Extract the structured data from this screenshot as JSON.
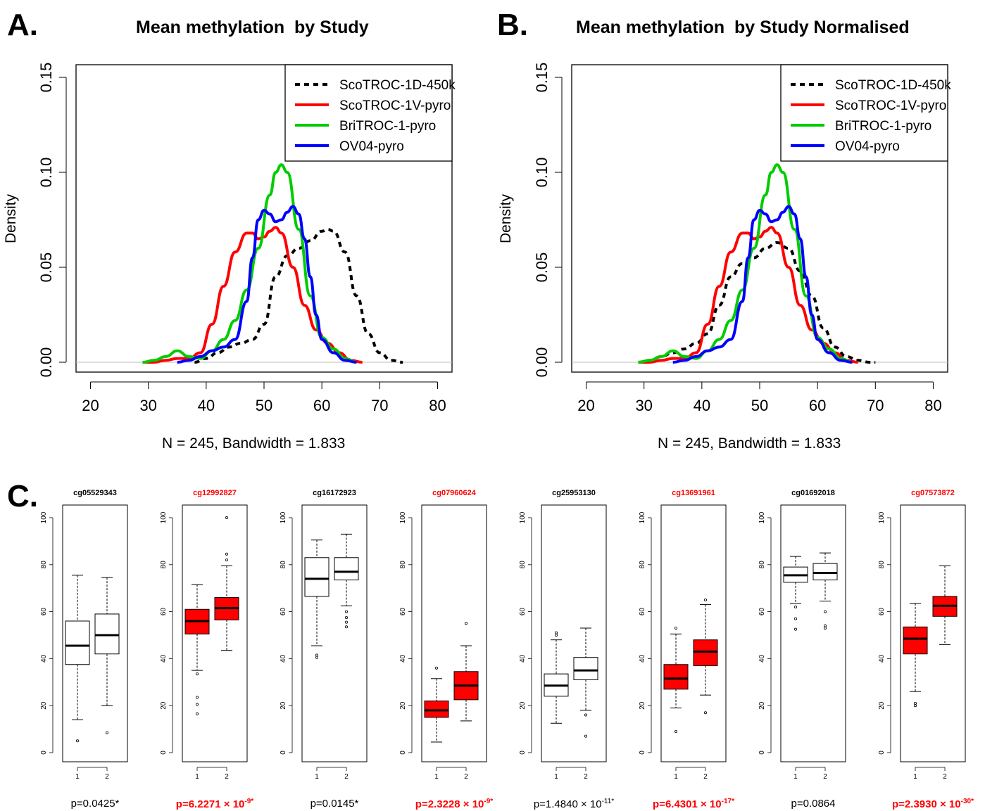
{
  "panels": {
    "a_label": "A.",
    "b_label": "B.",
    "c_label": "C."
  },
  "density_note": "N = 245, Bandwidth = 1.833",
  "chart_data": [
    {
      "type": "line",
      "title": "Mean methylation  by Study",
      "xlabel": "",
      "ylabel": "Density",
      "xlim": [
        17.5,
        82.5
      ],
      "ylim": [
        0,
        0.15
      ],
      "xticks": [
        20,
        30,
        40,
        50,
        60,
        70,
        80
      ],
      "yticks": [
        "0.00",
        "0.05",
        "0.10",
        "0.15"
      ],
      "legend_position": "top-right",
      "series": [
        {
          "name": "ScoTROC-1D-450k",
          "color": "#000000",
          "dashed": true,
          "x": [
            38,
            40,
            42,
            44,
            46,
            48,
            50,
            52,
            54,
            56,
            58,
            60,
            61,
            62,
            64,
            66,
            68,
            70,
            72,
            74
          ],
          "y": [
            0.0,
            0.002,
            0.005,
            0.008,
            0.01,
            0.012,
            0.02,
            0.045,
            0.056,
            0.06,
            0.064,
            0.069,
            0.07,
            0.069,
            0.058,
            0.035,
            0.015,
            0.005,
            0.001,
            0.0
          ]
        },
        {
          "name": "ScoTROC-1V-pyro",
          "color": "#ff0000",
          "dashed": false,
          "x": [
            29,
            31,
            33,
            35,
            37,
            39,
            41,
            43,
            45,
            47,
            48,
            49,
            50,
            51,
            52,
            53,
            55,
            57,
            59,
            61,
            63,
            65,
            67
          ],
          "y": [
            0.0,
            0.0,
            0.001,
            0.002,
            0.002,
            0.005,
            0.02,
            0.04,
            0.058,
            0.068,
            0.068,
            0.065,
            0.066,
            0.069,
            0.071,
            0.068,
            0.05,
            0.03,
            0.017,
            0.01,
            0.005,
            0.001,
            0.0
          ]
        },
        {
          "name": "BriTROC-1-pyro",
          "color": "#00cc00",
          "dashed": false,
          "x": [
            29,
            31,
            33,
            35,
            37,
            39,
            41,
            43,
            45,
            47,
            49,
            51,
            52,
            53,
            54,
            56,
            58,
            60,
            62,
            64,
            66
          ],
          "y": [
            0.0,
            0.001,
            0.003,
            0.006,
            0.003,
            0.002,
            0.006,
            0.012,
            0.022,
            0.038,
            0.06,
            0.088,
            0.1,
            0.104,
            0.1,
            0.07,
            0.035,
            0.013,
            0.007,
            0.002,
            0.0
          ]
        },
        {
          "name": "OV04-pyro",
          "color": "#0000ff",
          "dashed": false,
          "x": [
            35,
            37,
            39,
            41,
            43,
            45,
            47,
            48,
            49,
            50,
            51,
            52,
            53,
            54,
            55,
            56,
            57,
            58,
            59,
            60,
            62,
            64,
            66
          ],
          "y": [
            0.0,
            0.001,
            0.003,
            0.006,
            0.008,
            0.012,
            0.032,
            0.055,
            0.075,
            0.08,
            0.078,
            0.074,
            0.075,
            0.079,
            0.082,
            0.078,
            0.065,
            0.045,
            0.025,
            0.012,
            0.005,
            0.001,
            0.0
          ]
        }
      ]
    },
    {
      "type": "line",
      "title": "Mean methylation  by Study Normalised",
      "xlabel": "",
      "ylabel": "Density",
      "xlim": [
        17.5,
        82.5
      ],
      "ylim": [
        0,
        0.15
      ],
      "xticks": [
        20,
        30,
        40,
        50,
        60,
        70,
        80
      ],
      "yticks": [
        "0.00",
        "0.05",
        "0.10",
        "0.15"
      ],
      "legend_position": "top-right",
      "series": [
        {
          "name": "ScoTROC-1D-450k",
          "color": "#000000",
          "dashed": true,
          "x": [
            29,
            31,
            33,
            35,
            37,
            39,
            41,
            43,
            45,
            47,
            49,
            51,
            53,
            55,
            57,
            59,
            61,
            63,
            65,
            67,
            69,
            70
          ],
          "y": [
            0.0,
            0.001,
            0.003,
            0.005,
            0.007,
            0.01,
            0.015,
            0.03,
            0.045,
            0.052,
            0.055,
            0.06,
            0.063,
            0.06,
            0.048,
            0.035,
            0.018,
            0.008,
            0.003,
            0.001,
            0.0,
            0.0
          ]
        },
        {
          "name": "ScoTROC-1V-pyro",
          "color": "#ff0000",
          "dashed": false,
          "x": [
            29,
            31,
            33,
            35,
            37,
            39,
            41,
            43,
            45,
            47,
            48,
            49,
            50,
            51,
            52,
            53,
            55,
            57,
            59,
            61,
            63,
            65,
            67
          ],
          "y": [
            0.0,
            0.0,
            0.001,
            0.002,
            0.002,
            0.005,
            0.02,
            0.04,
            0.058,
            0.068,
            0.068,
            0.065,
            0.066,
            0.069,
            0.071,
            0.068,
            0.05,
            0.03,
            0.017,
            0.01,
            0.005,
            0.001,
            0.0
          ]
        },
        {
          "name": "BriTROC-1-pyro",
          "color": "#00cc00",
          "dashed": false,
          "x": [
            29,
            31,
            33,
            35,
            37,
            39,
            41,
            43,
            45,
            47,
            49,
            51,
            52,
            53,
            54,
            56,
            58,
            60,
            62,
            64,
            66
          ],
          "y": [
            0.0,
            0.001,
            0.003,
            0.006,
            0.003,
            0.002,
            0.006,
            0.012,
            0.022,
            0.038,
            0.06,
            0.088,
            0.1,
            0.104,
            0.1,
            0.07,
            0.035,
            0.013,
            0.007,
            0.002,
            0.0
          ]
        },
        {
          "name": "OV04-pyro",
          "color": "#0000ff",
          "dashed": false,
          "x": [
            35,
            37,
            39,
            41,
            43,
            45,
            47,
            48,
            49,
            50,
            51,
            52,
            53,
            54,
            55,
            56,
            57,
            58,
            59,
            60,
            62,
            64,
            66
          ],
          "y": [
            0.0,
            0.001,
            0.003,
            0.006,
            0.008,
            0.012,
            0.032,
            0.055,
            0.075,
            0.08,
            0.078,
            0.074,
            0.075,
            0.079,
            0.082,
            0.078,
            0.065,
            0.045,
            0.025,
            0.012,
            0.005,
            0.001,
            0.0
          ]
        }
      ]
    },
    {
      "type": "box",
      "xlabel": "",
      "ylabel": "",
      "ylim": [
        0,
        100
      ],
      "yticks": [
        "0",
        "20",
        "40",
        "60",
        "80",
        "100"
      ],
      "categories": [
        "1",
        "2"
      ],
      "plots": [
        {
          "title": "cg05529343",
          "highlight": false,
          "pvalue": {
            "base": "p=0.0425*",
            "exp": ""
          },
          "boxes": [
            {
              "min": 14,
              "q1": 37.5,
              "median": 45.5,
              "q3": 56,
              "max": 75.5,
              "outliers": [
                5
              ]
            },
            {
              "min": 20,
              "q1": 42,
              "median": 50,
              "q3": 59,
              "max": 74.5,
              "outliers": [
                8.5
              ]
            }
          ]
        },
        {
          "title": "cg12992827",
          "highlight": true,
          "pvalue": {
            "base": "p=6.2271 × 10",
            "exp": "-9*"
          },
          "boxes": [
            {
              "min": 35,
              "q1": 50.5,
              "median": 56,
              "q3": 61,
              "max": 71.5,
              "outliers": [
                33.5,
                23.5,
                20.5,
                16.5
              ]
            },
            {
              "min": 43.5,
              "q1": 56.5,
              "median": 61.5,
              "q3": 66,
              "max": 79.5,
              "outliers": [
                82,
                84.5,
                100
              ]
            }
          ]
        },
        {
          "title": "cg16172923",
          "highlight": false,
          "pvalue": {
            "base": "p=0.0145*",
            "exp": ""
          },
          "boxes": [
            {
              "min": 45.5,
              "q1": 66.5,
              "median": 74,
              "q3": 83,
              "max": 90.5,
              "outliers": [
                41.5,
                40.5
              ]
            },
            {
              "min": 62.5,
              "q1": 73.5,
              "median": 77,
              "q3": 83,
              "max": 93,
              "outliers": [
                60,
                57.5,
                55.5,
                53.5
              ]
            }
          ]
        },
        {
          "title": "cg07960624",
          "highlight": true,
          "pvalue": {
            "base": "p=2.3228 × 10",
            "exp": "-9*"
          },
          "boxes": [
            {
              "min": 4.5,
              "q1": 15,
              "median": 18,
              "q3": 22,
              "max": 31.5,
              "outliers": [
                36
              ]
            },
            {
              "min": 13.5,
              "q1": 22.5,
              "median": 28.5,
              "q3": 34.5,
              "max": 45.5,
              "outliers": [
                55
              ]
            }
          ]
        },
        {
          "title": "cg25953130",
          "highlight": false,
          "pvalue": {
            "base": "p=1.4840 × 10",
            "exp": "-11*"
          },
          "boxes": [
            {
              "min": 12.5,
              "q1": 24,
              "median": 28.5,
              "q3": 33.5,
              "max": 48,
              "outliers": [
                50,
                51
              ]
            },
            {
              "min": 18,
              "q1": 31,
              "median": 35,
              "q3": 40.5,
              "max": 53,
              "outliers": [
                16,
                7
              ]
            }
          ]
        },
        {
          "title": "cg13691961",
          "highlight": true,
          "pvalue": {
            "base": "p=6.4301 × 10",
            "exp": "-17*"
          },
          "boxes": [
            {
              "min": 19,
              "q1": 27,
              "median": 31.5,
              "q3": 37.5,
              "max": 50.5,
              "outliers": [
                53,
                9
              ]
            },
            {
              "min": 24.5,
              "q1": 37,
              "median": 43,
              "q3": 48,
              "max": 63,
              "outliers": [
                65,
                17
              ]
            }
          ]
        },
        {
          "title": "cg01692018",
          "highlight": false,
          "pvalue": {
            "base": "p=0.0864",
            "exp": ""
          },
          "boxes": [
            {
              "min": 63.5,
              "q1": 72.5,
              "median": 75.5,
              "q3": 79,
              "max": 83.5,
              "outliers": [
                62,
                57,
                52.5
              ]
            },
            {
              "min": 64.5,
              "q1": 73.5,
              "median": 76.5,
              "q3": 80.5,
              "max": 85,
              "outliers": [
                60,
                54,
                53
              ]
            }
          ]
        },
        {
          "title": "cg07573872",
          "highlight": true,
          "pvalue": {
            "base": "p=2.3930 × 10",
            "exp": "-30*"
          },
          "boxes": [
            {
              "min": 26,
              "q1": 42,
              "median": 48.5,
              "q3": 53.5,
              "max": 63.5,
              "outliers": [
                21,
                20
              ]
            },
            {
              "min": 46,
              "q1": 58,
              "median": 62.5,
              "q3": 66.5,
              "max": 79.5,
              "outliers": []
            }
          ]
        }
      ]
    }
  ],
  "colors": {
    "highlight": "#ff0000",
    "axis": "#000000",
    "zero_line": "#bebebe"
  }
}
